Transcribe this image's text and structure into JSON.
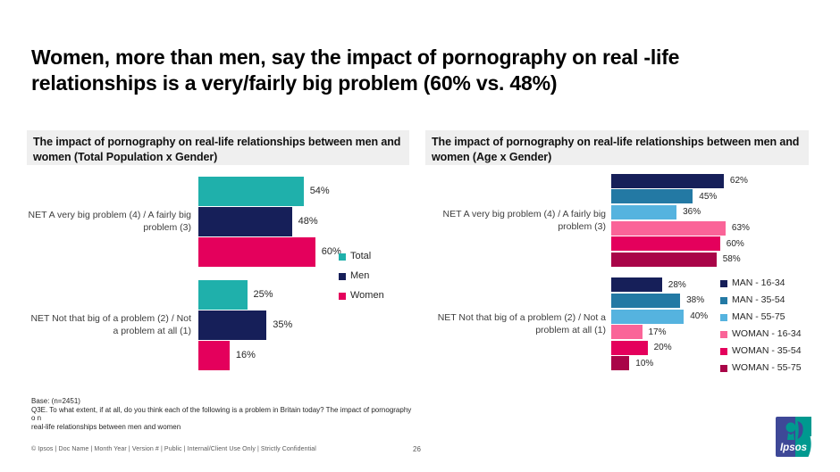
{
  "slide": {
    "title_line1": "Women, more than men, say the impact of pornography on real -life",
    "title_line2": "relationships is a very/fairly big problem (60% vs. 48%)",
    "base_note": "Base: (n=2451)",
    "question_note_line1": "Q3E. To what extent, if at all, do you think each of the following is a problem in Britain today? The impact of pornography o n",
    "question_note_line2": "real-life relationships between men and women",
    "footer_meta": "© Ipsos | Doc Name | Month Year | Version # | Public | Internal/Client Use Only | Strictly Confidential",
    "page_number": "26",
    "logo": {
      "text": "Ipsos",
      "blue": "#3E4897",
      "teal": "#00998F"
    }
  },
  "chart_data": [
    {
      "type": "bar",
      "orientation": "horizontal",
      "title": "The impact of pornography on real-life relationships between men and women (Total Population x Gender)",
      "categories": [
        "NET A very big problem (4) / A fairly big problem (3)",
        "NET Not that big of a problem (2) / Not a problem at all (1)"
      ],
      "series": [
        {
          "name": "Total",
          "color": "#1FB0AB",
          "values": [
            54,
            25
          ]
        },
        {
          "name": "Men",
          "color": "#161F59",
          "values": [
            48,
            35
          ]
        },
        {
          "name": "Women",
          "color": "#E4005C",
          "values": [
            60,
            16
          ]
        }
      ],
      "value_suffix": "%",
      "xlim": [
        0,
        100
      ],
      "grid": false,
      "legend_position": "right"
    },
    {
      "type": "bar",
      "orientation": "horizontal",
      "title": "The impact of pornography on real-life relationships between men and women (Age x Gender)",
      "categories": [
        "NET A very big problem (4) / A fairly big problem (3)",
        "NET Not that big of a problem (2) / Not a problem at all (1)"
      ],
      "series": [
        {
          "name": "MAN - 16-34",
          "color": "#161F59",
          "values": [
            62,
            28
          ]
        },
        {
          "name": "MAN - 35-54",
          "color": "#2379A4",
          "values": [
            45,
            38
          ]
        },
        {
          "name": "MAN - 55-75",
          "color": "#55B3DF",
          "values": [
            36,
            40
          ]
        },
        {
          "name": "WOMAN - 16-34",
          "color": "#FA6498",
          "values": [
            63,
            17
          ]
        },
        {
          "name": "WOMAN - 35-54",
          "color": "#E4005C",
          "values": [
            60,
            20
          ]
        },
        {
          "name": "WOMAN - 55-75",
          "color": "#A90448",
          "values": [
            58,
            10
          ]
        }
      ],
      "value_suffix": "%",
      "xlim": [
        0,
        100
      ],
      "grid": false,
      "legend_position": "right"
    }
  ]
}
